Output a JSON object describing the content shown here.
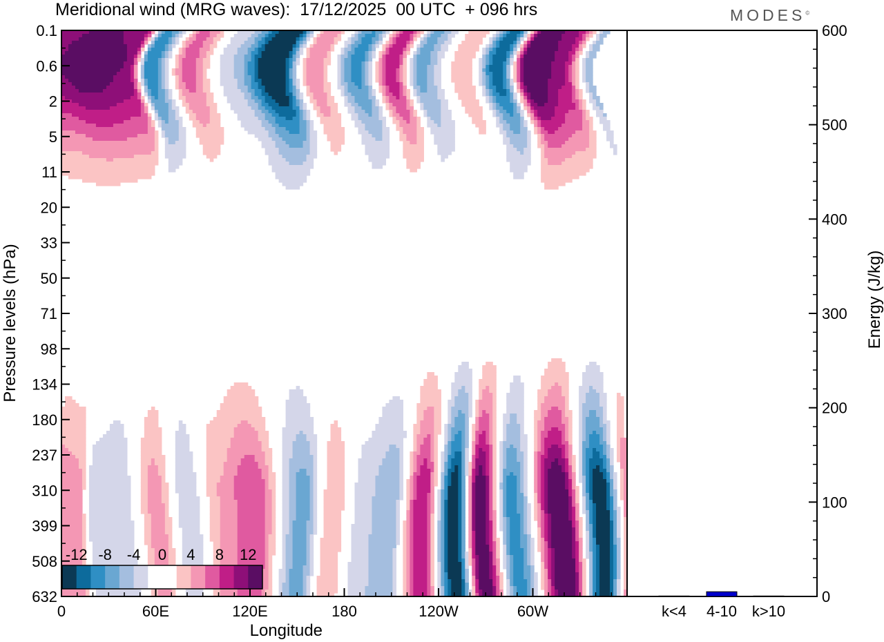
{
  "title": "Meridional wind (MRG waves):  17/12/2025  00 UTC  + 096 hrs",
  "brand": "MODES",
  "brand_mark": "©",
  "chart_data": [
    {
      "type": "heatmap",
      "title": "Meridional wind (MRG waves):  17/12/2025  00 UTC  + 096 hrs",
      "xlabel": "Longitude",
      "ylabel": "Pressure levels (hPa)",
      "x_tick_labels": [
        "0",
        "60E",
        "120E",
        "180",
        "120W",
        "60W"
      ],
      "x_ticks_deg": [
        0,
        60,
        120,
        180,
        240,
        300
      ],
      "xlim_deg": [
        0,
        360
      ],
      "y_tick_labels": [
        "0.1",
        "0.6",
        "2",
        "5",
        "11",
        "20",
        "33",
        "50",
        "71",
        "98",
        "134",
        "180",
        "237",
        "310",
        "399",
        "508",
        "632"
      ],
      "color_levels": [
        -12,
        -10,
        -8,
        -6,
        -4,
        -2,
        0,
        2,
        4,
        6,
        8,
        10,
        12
      ],
      "colorbar_labels": [
        "-12",
        "-8",
        "-4",
        "0",
        "4",
        "8",
        "12"
      ],
      "colors": [
        "#0b3954",
        "#0d6b9c",
        "#2f8fc4",
        "#6aa7d2",
        "#a4bedf",
        "#d4d6e9",
        "#ffffff",
        "#ffffff",
        "#fbc4c4",
        "#f497b4",
        "#e05aa0",
        "#c01e87",
        "#8e0f78",
        "#5a0d63"
      ],
      "lower_structure": [
        {
          "lon": 0,
          "amp": 6
        },
        {
          "lon": 14,
          "amp": 5
        },
        {
          "lon": 24,
          "amp": -3
        },
        {
          "lon": 40,
          "amp": -4
        },
        {
          "lon": 62,
          "amp": 5
        },
        {
          "lon": 80,
          "amp": -4
        },
        {
          "lon": 98,
          "amp": 4
        },
        {
          "lon": 118,
          "amp": 8
        },
        {
          "lon": 150,
          "amp": -7
        },
        {
          "lon": 170,
          "amp": 4
        },
        {
          "lon": 190,
          "amp": -3
        },
        {
          "lon": 210,
          "amp": -6
        },
        {
          "lon": 232,
          "amp": 10
        },
        {
          "lon": 254,
          "amp": -14
        },
        {
          "lon": 270,
          "amp": 14
        },
        {
          "lon": 290,
          "amp": -9
        },
        {
          "lon": 318,
          "amp": 15
        },
        {
          "lon": 342,
          "amp": -14
        },
        {
          "lon": 360,
          "amp": 7
        }
      ],
      "upper_structure": [
        {
          "lon": 0,
          "amp": 11
        },
        {
          "lon": 28,
          "amp": 14
        },
        {
          "lon": 54,
          "amp": 12
        },
        {
          "lon": 68,
          "amp": -10
        },
        {
          "lon": 92,
          "amp": 7
        },
        {
          "lon": 120,
          "amp": -4
        },
        {
          "lon": 148,
          "amp": -16
        },
        {
          "lon": 172,
          "amp": 6
        },
        {
          "lon": 200,
          "amp": -9
        },
        {
          "lon": 222,
          "amp": 10
        },
        {
          "lon": 240,
          "amp": -7
        },
        {
          "lon": 268,
          "amp": 4
        },
        {
          "lon": 290,
          "amp": -12
        },
        {
          "lon": 310,
          "amp": 16
        },
        {
          "lon": 330,
          "amp": 11
        },
        {
          "lon": 350,
          "amp": -6
        }
      ]
    },
    {
      "type": "bar",
      "title": "",
      "xlabel": "",
      "ylabel": "Energy (J/kg)",
      "categories": [
        "k<4",
        "4-10",
        "k>10"
      ],
      "values": [
        0.5,
        5,
        0.5
      ],
      "ylim": [
        0,
        600
      ],
      "y_tick_labels": [
        "0",
        "100",
        "200",
        "300",
        "400",
        "500",
        "600"
      ],
      "bar_color": "#0000cc"
    }
  ]
}
